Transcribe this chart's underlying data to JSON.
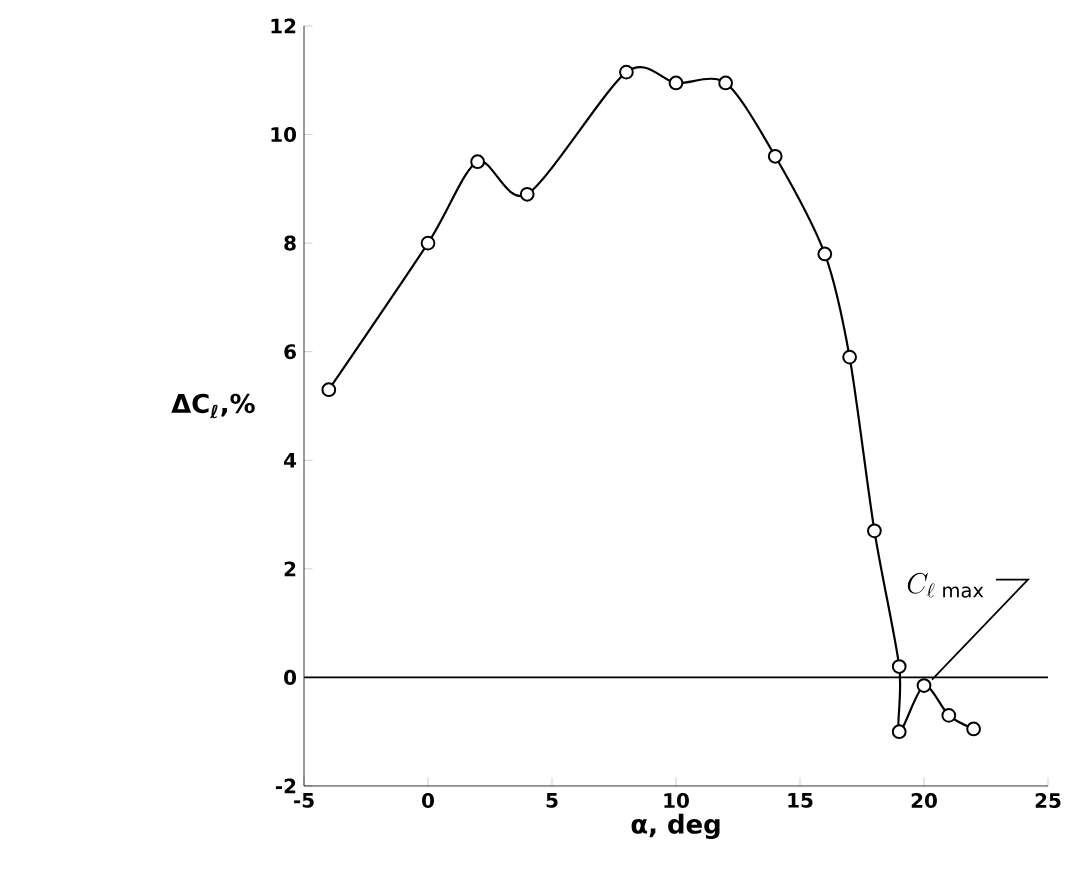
{
  "chart_data": {
    "type": "line",
    "xlabel": "α, deg",
    "ylabel": "ΔC$_{ℓ}$,%",
    "series": [
      {
        "color": "#000000",
        "x": [
          -4,
          0,
          2,
          4,
          8,
          10,
          12,
          14,
          16,
          17,
          18,
          19,
          19,
          20,
          21,
          22
        ],
        "values": [
          5.3,
          8.0,
          9.5,
          8.9,
          11.15,
          10.95,
          10.95,
          9.6,
          7.8,
          5.9,
          2.7,
          0.2,
          -1.0,
          -0.15,
          -0.7,
          -0.95
        ]
      }
    ],
    "xlim": [
      -5,
      25
    ],
    "ylim": [
      -2,
      12
    ],
    "xticks": [
      -5,
      0,
      5,
      10,
      15,
      20,
      25
    ],
    "yticks": [
      -2,
      0,
      2,
      4,
      6,
      8,
      10,
      12
    ],
    "ref_lines": [
      {
        "axis": "y",
        "value": 0,
        "color": "#000000"
      }
    ],
    "annotations": [
      {
        "text": "C_{\\ell\\,\\max}",
        "x": 20,
        "y": -0.15
      }
    ],
    "marker": "circle",
    "line_style": "solid"
  }
}
